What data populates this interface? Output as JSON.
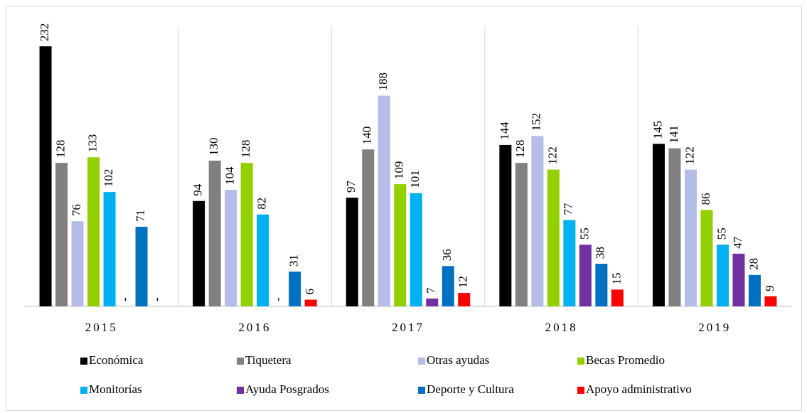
{
  "chart_data": {
    "type": "bar",
    "categories": [
      "2015",
      "2016",
      "2017",
      "2018",
      "2019"
    ],
    "series": [
      {
        "name": "Económica",
        "color": "#000000",
        "values": [
          232,
          94,
          97,
          144,
          145
        ]
      },
      {
        "name": "Tiquetera",
        "color": "#808080",
        "values": [
          128,
          130,
          140,
          128,
          141
        ]
      },
      {
        "name": "Otras ayudas",
        "color": "#b4bce8",
        "values": [
          76,
          104,
          188,
          152,
          122
        ]
      },
      {
        "name": "Becas Promedio",
        "color": "#92d000",
        "values": [
          133,
          128,
          109,
          122,
          86
        ]
      },
      {
        "name": "Monitorías",
        "color": "#00b0f0",
        "values": [
          102,
          82,
          101,
          77,
          55
        ]
      },
      {
        "name": "Ayuda Posgrados",
        "color": "#7030a0",
        "values": [
          0,
          0,
          7,
          55,
          47
        ],
        "value_labels": [
          "-",
          "-",
          "7",
          "55",
          "47"
        ]
      },
      {
        "name": "Deporte y Cultura",
        "color": "#0070c0",
        "values": [
          71,
          31,
          36,
          38,
          28
        ]
      },
      {
        "name": "Apoyo administrativo",
        "color": "#ff0000",
        "values": [
          0,
          6,
          12,
          15,
          9
        ],
        "value_labels": [
          "-",
          "6",
          "12",
          "15",
          "9"
        ]
      }
    ],
    "ylim": [
      0,
      260
    ]
  }
}
